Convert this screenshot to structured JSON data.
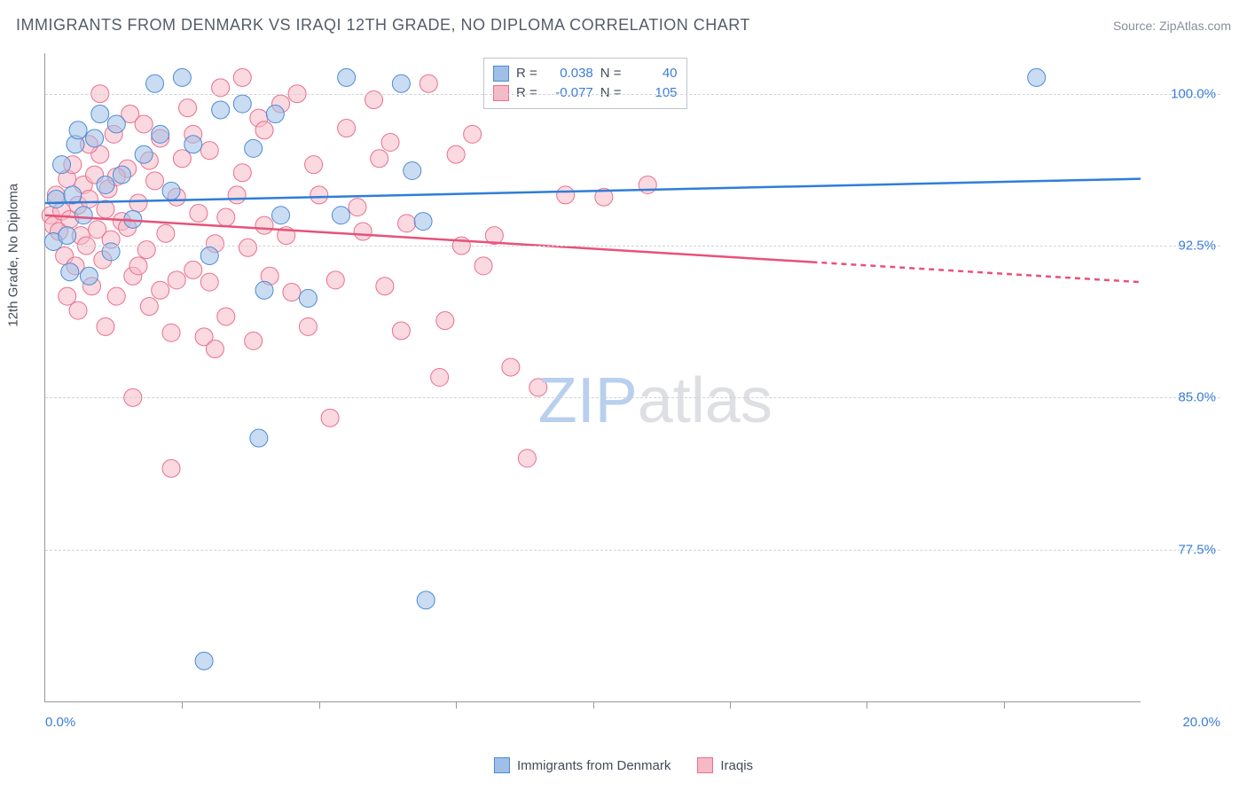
{
  "title": "IMMIGRANTS FROM DENMARK VS IRAQI 12TH GRADE, NO DIPLOMA CORRELATION CHART",
  "source": "Source: ZipAtlas.com",
  "yaxis_title": "12th Grade, No Diploma",
  "watermark": {
    "part1": "ZIP",
    "part2": "atlas"
  },
  "chart": {
    "type": "scatter",
    "xlim": [
      0,
      20
    ],
    "ylim": [
      70,
      102
    ],
    "x_tick_step": 2.5,
    "x_label_start": "0.0%",
    "x_label_end": "20.0%",
    "y_ticks": [
      77.5,
      85.0,
      92.5,
      100.0
    ],
    "y_tick_labels": [
      "77.5%",
      "85.0%",
      "92.5%",
      "100.0%"
    ],
    "background_color": "#ffffff",
    "grid_color": "#d0d3da",
    "marker_radius": 10,
    "marker_opacity": 0.55,
    "line_width": 2.5,
    "series": [
      {
        "name": "Immigrants from Denmark",
        "color_fill": "#9fbfe8",
        "color_stroke": "#4d8bd6",
        "line_color": "#2f7ed8",
        "r": "0.038",
        "n": "40",
        "regression": {
          "x1": 0,
          "y1": 94.6,
          "x2": 20,
          "y2": 95.8,
          "dashed_after_x": 20
        },
        "points": [
          [
            0.15,
            92.7
          ],
          [
            0.2,
            94.8
          ],
          [
            0.3,
            96.5
          ],
          [
            0.4,
            93.0
          ],
          [
            0.45,
            91.2
          ],
          [
            0.5,
            95.0
          ],
          [
            0.55,
            97.5
          ],
          [
            0.6,
            98.2
          ],
          [
            0.7,
            94.0
          ],
          [
            0.8,
            91.0
          ],
          [
            0.9,
            97.8
          ],
          [
            1.0,
            99.0
          ],
          [
            1.1,
            95.5
          ],
          [
            1.2,
            92.2
          ],
          [
            1.3,
            98.5
          ],
          [
            1.4,
            96.0
          ],
          [
            1.6,
            93.8
          ],
          [
            1.8,
            97.0
          ],
          [
            2.0,
            100.5
          ],
          [
            2.1,
            98.0
          ],
          [
            2.3,
            95.2
          ],
          [
            2.5,
            100.8
          ],
          [
            2.7,
            97.5
          ],
          [
            3.0,
            92.0
          ],
          [
            3.2,
            99.2
          ],
          [
            3.6,
            99.5
          ],
          [
            3.8,
            97.3
          ],
          [
            3.9,
            83.0
          ],
          [
            4.0,
            90.3
          ],
          [
            4.2,
            99.0
          ],
          [
            4.3,
            94.0
          ],
          [
            4.8,
            89.9
          ],
          [
            5.5,
            100.8
          ],
          [
            6.5,
            100.5
          ],
          [
            6.7,
            96.2
          ],
          [
            6.9,
            93.7
          ],
          [
            6.95,
            75.0
          ],
          [
            2.9,
            72.0
          ],
          [
            18.1,
            100.8
          ],
          [
            5.4,
            94.0
          ]
        ]
      },
      {
        "name": "Iraqis",
        "color_fill": "#f5bac6",
        "color_stroke": "#ea6f8d",
        "line_color": "#e6527a",
        "r": "-0.077",
        "n": "105",
        "regression": {
          "x1": 0,
          "y1": 94.0,
          "x2": 20,
          "y2": 90.7,
          "dashed_after_x": 14
        },
        "points": [
          [
            0.1,
            94.0
          ],
          [
            0.15,
            93.5
          ],
          [
            0.2,
            95.0
          ],
          [
            0.25,
            93.2
          ],
          [
            0.3,
            94.2
          ],
          [
            0.35,
            92.0
          ],
          [
            0.4,
            95.8
          ],
          [
            0.45,
            93.8
          ],
          [
            0.5,
            96.5
          ],
          [
            0.55,
            91.5
          ],
          [
            0.6,
            94.5
          ],
          [
            0.65,
            93.0
          ],
          [
            0.7,
            95.5
          ],
          [
            0.75,
            92.5
          ],
          [
            0.8,
            94.8
          ],
          [
            0.85,
            90.5
          ],
          [
            0.9,
            96.0
          ],
          [
            0.95,
            93.3
          ],
          [
            1.0,
            97.0
          ],
          [
            1.05,
            91.8
          ],
          [
            1.1,
            94.3
          ],
          [
            1.15,
            95.3
          ],
          [
            1.2,
            92.8
          ],
          [
            1.25,
            98.0
          ],
          [
            1.3,
            90.0
          ],
          [
            1.4,
            93.7
          ],
          [
            1.5,
            96.3
          ],
          [
            1.55,
            99.0
          ],
          [
            1.6,
            91.0
          ],
          [
            1.7,
            94.6
          ],
          [
            1.8,
            98.5
          ],
          [
            1.85,
            92.3
          ],
          [
            1.9,
            89.5
          ],
          [
            2.0,
            95.7
          ],
          [
            2.1,
            97.8
          ],
          [
            2.2,
            93.1
          ],
          [
            2.3,
            81.5
          ],
          [
            2.4,
            90.8
          ],
          [
            2.5,
            96.8
          ],
          [
            2.6,
            99.3
          ],
          [
            2.7,
            91.3
          ],
          [
            2.8,
            94.1
          ],
          [
            2.9,
            88.0
          ],
          [
            3.0,
            97.2
          ],
          [
            3.1,
            92.6
          ],
          [
            3.2,
            100.3
          ],
          [
            3.3,
            89.0
          ],
          [
            3.5,
            95.0
          ],
          [
            3.6,
            100.8
          ],
          [
            3.7,
            92.4
          ],
          [
            3.8,
            87.8
          ],
          [
            3.9,
            98.8
          ],
          [
            4.0,
            93.5
          ],
          [
            4.1,
            91.0
          ],
          [
            4.3,
            99.5
          ],
          [
            4.5,
            90.2
          ],
          [
            4.6,
            100.0
          ],
          [
            4.8,
            88.5
          ],
          [
            5.0,
            95.0
          ],
          [
            5.2,
            84.0
          ],
          [
            5.5,
            98.3
          ],
          [
            5.8,
            93.2
          ],
          [
            6.0,
            99.7
          ],
          [
            6.2,
            90.5
          ],
          [
            6.3,
            97.6
          ],
          [
            6.5,
            88.3
          ],
          [
            7.0,
            100.5
          ],
          [
            7.2,
            86.0
          ],
          [
            7.5,
            97.0
          ],
          [
            7.6,
            92.5
          ],
          [
            7.8,
            98.0
          ],
          [
            8.2,
            93.0
          ],
          [
            8.5,
            86.5
          ],
          [
            8.8,
            82.0
          ],
          [
            9.0,
            85.5
          ],
          [
            9.5,
            95.0
          ],
          [
            10.2,
            94.9
          ],
          [
            11.0,
            95.5
          ],
          [
            0.4,
            90.0
          ],
          [
            0.6,
            89.3
          ],
          [
            0.8,
            97.5
          ],
          [
            1.0,
            100.0
          ],
          [
            1.1,
            88.5
          ],
          [
            1.3,
            95.9
          ],
          [
            1.5,
            93.4
          ],
          [
            1.7,
            91.5
          ],
          [
            1.9,
            96.7
          ],
          [
            2.1,
            90.3
          ],
          [
            2.4,
            94.9
          ],
          [
            2.7,
            98.0
          ],
          [
            3.0,
            90.7
          ],
          [
            3.3,
            93.9
          ],
          [
            3.6,
            96.1
          ],
          [
            4.0,
            98.2
          ],
          [
            4.4,
            93.0
          ],
          [
            4.9,
            96.5
          ],
          [
            5.3,
            90.8
          ],
          [
            5.7,
            94.4
          ],
          [
            6.1,
            96.8
          ],
          [
            6.6,
            93.6
          ],
          [
            7.3,
            88.8
          ],
          [
            8.0,
            91.5
          ],
          [
            1.6,
            85.0
          ],
          [
            2.3,
            88.2
          ],
          [
            3.1,
            87.4
          ]
        ]
      }
    ]
  },
  "legend": {
    "item1": "Immigrants from Denmark",
    "item2": "Iraqis"
  },
  "stats_labels": {
    "r": "R =",
    "n": "N ="
  }
}
